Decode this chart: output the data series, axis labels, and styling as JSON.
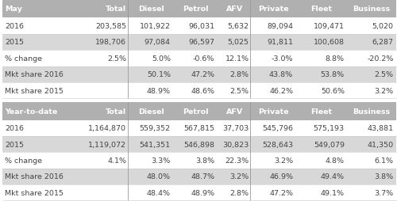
{
  "header1": [
    "May",
    "Total",
    "Diesel",
    "Petrol",
    "AFV",
    "Private",
    "Fleet",
    "Business"
  ],
  "header2": [
    "Year-to-date",
    "Total",
    "Diesel",
    "Petrol",
    "AFV",
    "Private",
    "Fleet",
    "Business"
  ],
  "rows_top": [
    [
      "2016",
      "203,585",
      "101,922",
      "96,031",
      "5,632",
      "89,094",
      "109,471",
      "5,020"
    ],
    [
      "2015",
      "198,706",
      "97,084",
      "96,597",
      "5,025",
      "91,811",
      "100,608",
      "6,287"
    ],
    [
      "% change",
      "2.5%",
      "5.0%",
      "-0.6%",
      "12.1%",
      "-3.0%",
      "8.8%",
      "-20.2%"
    ],
    [
      "Mkt share 2016",
      "",
      "50.1%",
      "47.2%",
      "2.8%",
      "43.8%",
      "53.8%",
      "2.5%"
    ],
    [
      "Mkt share 2015",
      "",
      "48.9%",
      "48.6%",
      "2.5%",
      "46.2%",
      "50.6%",
      "3.2%"
    ]
  ],
  "rows_bottom": [
    [
      "2016",
      "1,164,870",
      "559,352",
      "567,815",
      "37,703",
      "545,796",
      "575,193",
      "43,881"
    ],
    [
      "2015",
      "1,119,072",
      "541,351",
      "546,898",
      "30,823",
      "528,643",
      "549,079",
      "41,350"
    ],
    [
      "% change",
      "4.1%",
      "3.3%",
      "3.8%",
      "22.3%",
      "3.2%",
      "4.8%",
      "6.1%"
    ],
    [
      "Mkt share 2016",
      "",
      "48.0%",
      "48.7%",
      "3.2%",
      "46.9%",
      "49.4%",
      "3.8%"
    ],
    [
      "Mkt share 2015",
      "",
      "48.4%",
      "48.9%",
      "2.8%",
      "47.2%",
      "49.1%",
      "3.7%"
    ]
  ],
  "col_widths_rel": [
    1.55,
    1.05,
    0.9,
    0.9,
    0.7,
    0.9,
    1.05,
    1.0
  ],
  "header_bg": "#b0b0b0",
  "header_text": "#ffffff",
  "row_bg_odd": "#ffffff",
  "row_bg_even": "#d8d8d8",
  "fig_bg": "#ffffff",
  "text_color": "#444444",
  "divider_after_cols": [
    1,
    4
  ],
  "divider_color": "#999999",
  "line_color": "#cccccc",
  "font_size": 6.8,
  "header_font_size": 6.8
}
